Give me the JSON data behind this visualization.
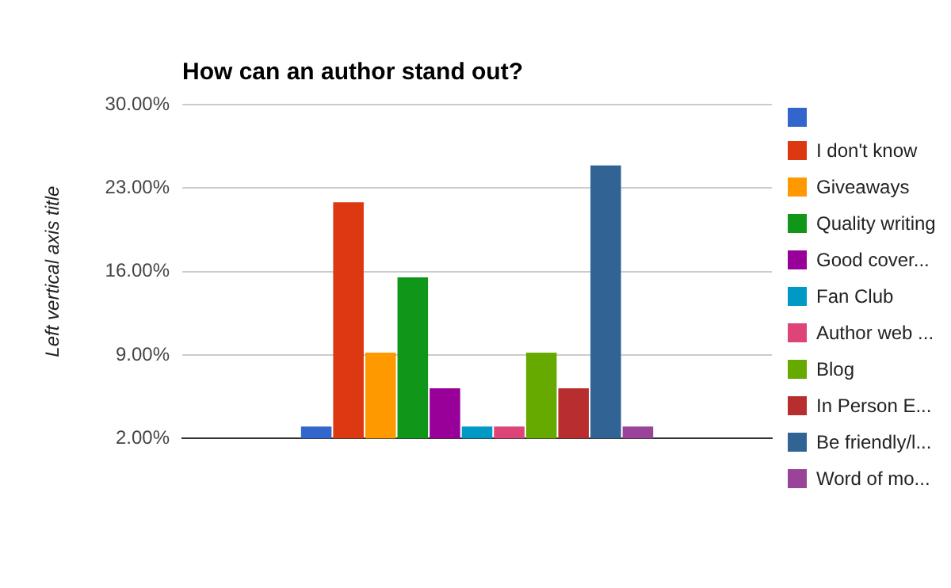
{
  "chart_data": {
    "type": "bar",
    "title": "How can an author stand out?",
    "ylabel": "Left vertical axis title",
    "categories": [
      null
    ],
    "series": [
      {
        "color": "#3366cc",
        "values": [
          3
        ]
      },
      {
        "name": "I don't know",
        "color": "#dc3912",
        "values": [
          21.8
        ]
      },
      {
        "name": "Giveaways",
        "color": "#ff9900",
        "values": [
          9.2
        ]
      },
      {
        "name": "Quality writing",
        "color": "#109618",
        "values": [
          15.5
        ]
      },
      {
        "name": "Good cover...",
        "color": "#990099",
        "values": [
          6.2
        ]
      },
      {
        "name": "Fan Club",
        "color": "#0099c6",
        "values": [
          3
        ]
      },
      {
        "name": "Author web ...",
        "color": "#dd4477",
        "values": [
          3
        ]
      },
      {
        "name": "Blog",
        "color": "#66aa00",
        "values": [
          9.2
        ]
      },
      {
        "name": "In Person E...",
        "color": "#b82e2e",
        "values": [
          6.2
        ]
      },
      {
        "name": "Be friendly/l...",
        "color": "#316395",
        "values": [
          24.9
        ]
      },
      {
        "name": "Word of mo...",
        "color": "#994499",
        "values": [
          3
        ]
      }
    ],
    "ylim": [
      2,
      30
    ],
    "yticks": [
      {
        "value": 2,
        "label": "2.00%"
      },
      {
        "value": 9,
        "label": "9.00%"
      },
      {
        "value": 16,
        "label": "16.00%"
      },
      {
        "value": 23,
        "label": "23.00%"
      },
      {
        "value": 30,
        "label": "30.00%"
      }
    ],
    "grid": "y",
    "legend": "right"
  }
}
